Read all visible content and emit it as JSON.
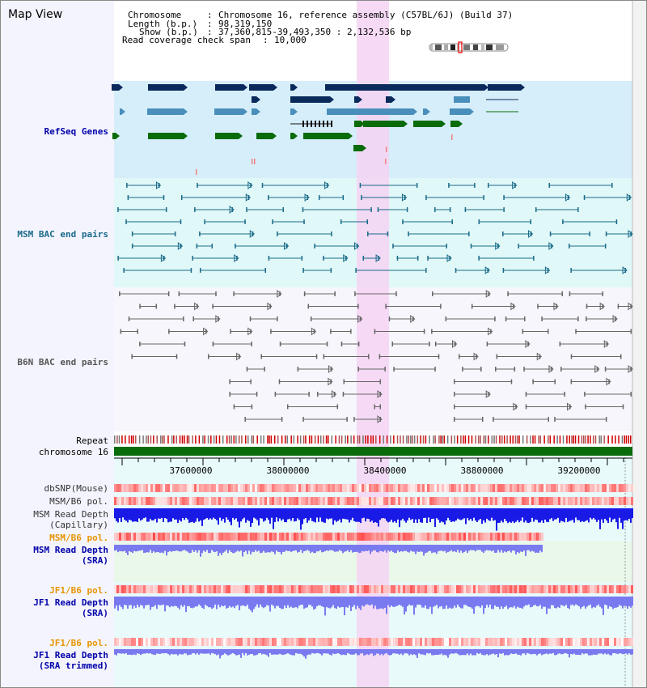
{
  "title": "Map View",
  "header": {
    "chromosome_label": "Chromosome",
    "chromosome_value": "Chromosome 16, reference assembly (C57BL/6J) (Build 37)",
    "length_label": "Length (b.p.)",
    "length_value": "98,319,150",
    "show_label": "Show (b.p.)",
    "show_value": "37,360,815-39,493,350 : 2,132,536 bp",
    "coverage_label": "Read coverage check span",
    "coverage_value": "10,000"
  },
  "tracks": {
    "refseq": "RefSeq Genes",
    "msm_bac": "MSM BAC end pairs",
    "b6n_bac": "B6N BAC end pairs",
    "repeat": "Repeat",
    "chromosome": "chromosome 16",
    "dbsnp": "dbSNP(Mouse)",
    "msm_b6_pol_1": "MSM/B6 pol.",
    "msm_read_depth_cap_1": "MSM Read Depth",
    "msm_read_depth_cap_2": "(Capillary)",
    "msm_b6_pol_2": "MSM/B6 pol.",
    "msm_read_depth_sra_1": "MSM Read Depth",
    "msm_read_depth_sra_2": "(SRA)",
    "jf1_b6_pol_1": "JF1/B6 pol.",
    "jf1_read_depth_1": "JF1 Read Depth",
    "jf1_read_depth_2": "(SRA)",
    "jf1_b6_pol_2": "JF1/B6 pol.",
    "jf1_read_depth_tr_1": "JF1 Read Depth",
    "jf1_read_depth_tr_2": "(SRA trimmed)"
  },
  "axis": {
    "ticks": [
      "37600000",
      "38000000",
      "38400000",
      "38800000",
      "39200000"
    ]
  },
  "colors": {
    "refseq_bg": "#d6eefa",
    "bac_bg": "#e0f8f8",
    "highlight": "#f5d3f3",
    "gene_dark": "#0b2a5c",
    "gene_light": "#4a8fbb",
    "gene_green": "#0a6b0a",
    "chromosome_bar": "#0a6b0a",
    "depth_blue": "#1a1ae6",
    "depth_lavender": "#7a7af0"
  }
}
